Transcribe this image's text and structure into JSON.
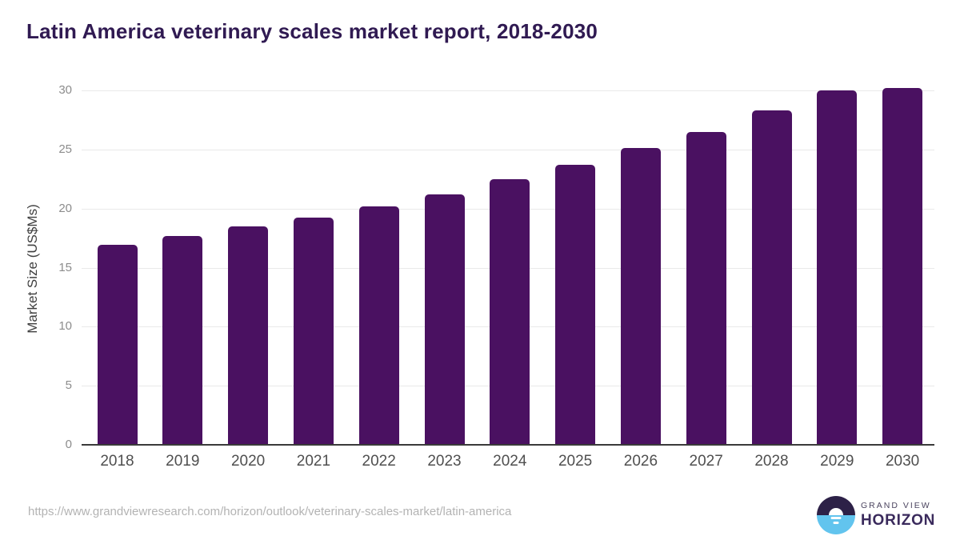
{
  "page": {
    "title": "Latin America veterinary scales market report, 2018-2030",
    "source_url": "https://www.grandviewresearch.com/horizon/outlook/veterinary-scales-market/latin-america"
  },
  "logo": {
    "icon": "horizon-sun-over-water-icon",
    "brand_top": "GRAND VIEW",
    "brand_bottom": "HORIZON"
  },
  "colors": {
    "bar": "#4a1161",
    "title": "#301a52",
    "gridline": "#e9e9e9",
    "axis_line": "#3a3a3a",
    "y_tick_label": "#8c8c8c",
    "x_tick_label": "#4f4f4f",
    "axis_title": "#3f3f3f",
    "url_text": "#b3b3b3",
    "logo_purple": "#2d2147",
    "logo_blue": "#62c4ee",
    "logo_text_top": "#4b445f",
    "logo_text_bottom": "#3a2a5c"
  },
  "chart_data": {
    "type": "bar",
    "title": "Latin America veterinary scales market report, 2018-2030",
    "categories": [
      "2018",
      "2019",
      "2020",
      "2021",
      "2022",
      "2023",
      "2024",
      "2025",
      "2026",
      "2027",
      "2028",
      "2029",
      "2030"
    ],
    "values": [
      16.9,
      17.7,
      18.5,
      19.2,
      20.2,
      21.2,
      22.5,
      23.7,
      25.1,
      26.5,
      28.3,
      30.0,
      30.2
    ],
    "xlabel": "",
    "ylabel": "Market Size (US$Ms)",
    "ylim": [
      0,
      30
    ],
    "yticks": [
      0,
      5,
      10,
      15,
      20,
      25,
      30
    ],
    "grid": true,
    "legend": false,
    "bar_color": "#4a1161"
  }
}
